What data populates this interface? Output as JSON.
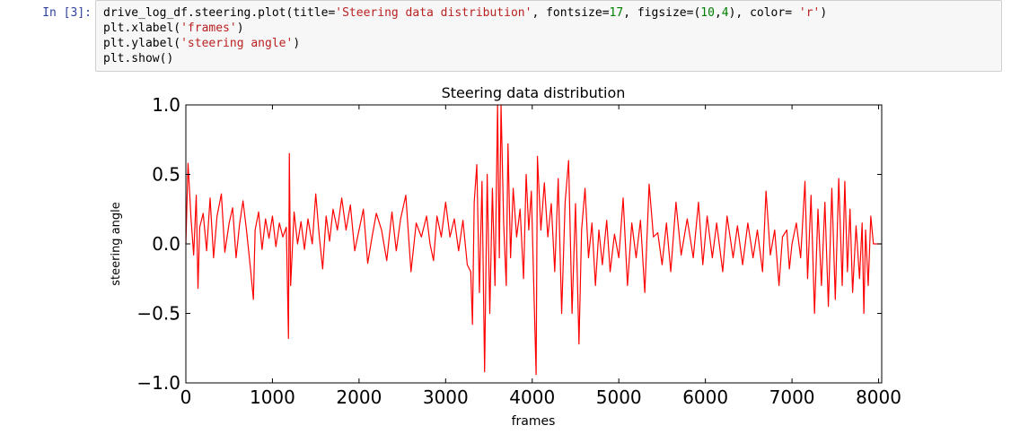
{
  "cell": {
    "prompt": "In [3]:",
    "code_lines": [
      [
        {
          "t": "drive_log_df.steering.plot(title=",
          "c": ""
        },
        {
          "t": "'Steering data distribution'",
          "c": "str"
        },
        {
          "t": ", fontsize=",
          "c": ""
        },
        {
          "t": "17",
          "c": "num"
        },
        {
          "t": ", figsize=(",
          "c": ""
        },
        {
          "t": "10",
          "c": "num"
        },
        {
          "t": ",",
          "c": ""
        },
        {
          "t": "4",
          "c": "num"
        },
        {
          "t": "), color= ",
          "c": ""
        },
        {
          "t": "'r'",
          "c": "str"
        },
        {
          "t": ")",
          "c": ""
        }
      ],
      [
        {
          "t": "plt.xlabel(",
          "c": ""
        },
        {
          "t": "'frames'",
          "c": "str"
        },
        {
          "t": ")",
          "c": ""
        }
      ],
      [
        {
          "t": "plt.ylabel(",
          "c": ""
        },
        {
          "t": "'steering angle'",
          "c": "str"
        },
        {
          "t": ")",
          "c": ""
        }
      ],
      [
        {
          "t": "plt.show()",
          "c": ""
        }
      ]
    ]
  },
  "colors": {
    "series": "#ff0000",
    "string": "#ba2121",
    "number": "#008000",
    "prompt": "#303f9f",
    "cell_background": "#f7f7f7"
  },
  "chart_data": {
    "type": "line",
    "title": "Steering data distribution",
    "xlabel": "frames",
    "ylabel": "steering angle",
    "xlim": [
      0,
      8036
    ],
    "ylim": [
      -1.0,
      1.0
    ],
    "xticks": [
      0,
      1000,
      2000,
      3000,
      4000,
      5000,
      6000,
      7000,
      8000
    ],
    "xtick_labels": [
      "0",
      "1000",
      "2000",
      "3000",
      "4000",
      "5000",
      "6000",
      "7000",
      "8000"
    ],
    "yticks": [
      1.0,
      0.5,
      0.0,
      -0.5,
      -1.0
    ],
    "ytick_labels": [
      "1.0",
      "0.5",
      "0.0",
      "−0.5",
      "−1.0"
    ],
    "grid": false,
    "legend": false,
    "series": [
      {
        "color": "r",
        "points": [
          [
            0,
            0.0
          ],
          [
            25,
            0.58
          ],
          [
            60,
            0.18
          ],
          [
            90,
            -0.08
          ],
          [
            120,
            0.35
          ],
          [
            140,
            -0.32
          ],
          [
            160,
            0.12
          ],
          [
            200,
            0.22
          ],
          [
            240,
            -0.05
          ],
          [
            280,
            0.33
          ],
          [
            320,
            -0.1
          ],
          [
            360,
            0.2
          ],
          [
            410,
            0.36
          ],
          [
            450,
            -0.06
          ],
          [
            500,
            0.15
          ],
          [
            540,
            0.26
          ],
          [
            580,
            -0.1
          ],
          [
            620,
            0.14
          ],
          [
            660,
            0.31
          ],
          [
            700,
            0.1
          ],
          [
            750,
            -0.2
          ],
          [
            780,
            -0.4
          ],
          [
            800,
            0.1
          ],
          [
            840,
            0.23
          ],
          [
            880,
            -0.04
          ],
          [
            920,
            0.18
          ],
          [
            960,
            0.04
          ],
          [
            1000,
            0.2
          ],
          [
            1040,
            -0.02
          ],
          [
            1080,
            0.15
          ],
          [
            1120,
            0.05
          ],
          [
            1160,
            0.12
          ],
          [
            1185,
            -0.68
          ],
          [
            1195,
            0.65
          ],
          [
            1210,
            -0.3
          ],
          [
            1250,
            0.23
          ],
          [
            1290,
            0.0
          ],
          [
            1330,
            0.16
          ],
          [
            1370,
            -0.04
          ],
          [
            1410,
            0.18
          ],
          [
            1460,
            0.0
          ],
          [
            1500,
            0.36
          ],
          [
            1540,
            0.06
          ],
          [
            1580,
            -0.18
          ],
          [
            1620,
            0.2
          ],
          [
            1660,
            0.02
          ],
          [
            1700,
            0.25
          ],
          [
            1750,
            0.1
          ],
          [
            1800,
            0.33
          ],
          [
            1850,
            0.1
          ],
          [
            1900,
            0.28
          ],
          [
            1950,
            -0.05
          ],
          [
            2000,
            0.1
          ],
          [
            2050,
            0.25
          ],
          [
            2100,
            -0.14
          ],
          [
            2150,
            0.05
          ],
          [
            2200,
            0.22
          ],
          [
            2260,
            0.1
          ],
          [
            2320,
            -0.12
          ],
          [
            2380,
            0.23
          ],
          [
            2430,
            -0.05
          ],
          [
            2480,
            0.18
          ],
          [
            2540,
            0.35
          ],
          [
            2600,
            -0.2
          ],
          [
            2660,
            0.15
          ],
          [
            2720,
            0.05
          ],
          [
            2780,
            0.2
          ],
          [
            2820,
            0.0
          ],
          [
            2860,
            -0.12
          ],
          [
            2900,
            0.2
          ],
          [
            2950,
            0.05
          ],
          [
            3000,
            0.3
          ],
          [
            3050,
            0.05
          ],
          [
            3100,
            0.18
          ],
          [
            3150,
            -0.05
          ],
          [
            3200,
            0.17
          ],
          [
            3250,
            -0.15
          ],
          [
            3290,
            -0.2
          ],
          [
            3310,
            -0.58
          ],
          [
            3330,
            0.3
          ],
          [
            3360,
            0.57
          ],
          [
            3390,
            -0.35
          ],
          [
            3420,
            0.45
          ],
          [
            3450,
            -0.92
          ],
          [
            3480,
            0.5
          ],
          [
            3510,
            -0.5
          ],
          [
            3540,
            0.4
          ],
          [
            3570,
            -0.3
          ],
          [
            3600,
            1.0
          ],
          [
            3620,
            -0.1
          ],
          [
            3640,
            1.0
          ],
          [
            3670,
            0.15
          ],
          [
            3700,
            -0.3
          ],
          [
            3720,
            0.72
          ],
          [
            3750,
            -0.1
          ],
          [
            3780,
            0.4
          ],
          [
            3820,
            0.05
          ],
          [
            3860,
            0.25
          ],
          [
            3900,
            -0.25
          ],
          [
            3930,
            0.5
          ],
          [
            3960,
            0.1
          ],
          [
            3990,
            0.38
          ],
          [
            4020,
            -0.35
          ],
          [
            4045,
            -0.94
          ],
          [
            4060,
            0.63
          ],
          [
            4100,
            0.1
          ],
          [
            4140,
            0.44
          ],
          [
            4180,
            0.05
          ],
          [
            4220,
            0.29
          ],
          [
            4260,
            -0.2
          ],
          [
            4300,
            0.47
          ],
          [
            4340,
            -0.5
          ],
          [
            4380,
            0.3
          ],
          [
            4420,
            0.6
          ],
          [
            4460,
            -0.5
          ],
          [
            4500,
            0.29
          ],
          [
            4540,
            -0.72
          ],
          [
            4570,
            0.1
          ],
          [
            4610,
            0.4
          ],
          [
            4650,
            -0.1
          ],
          [
            4690,
            0.15
          ],
          [
            4730,
            -0.3
          ],
          [
            4770,
            0.1
          ],
          [
            4810,
            -0.15
          ],
          [
            4860,
            0.17
          ],
          [
            4900,
            -0.2
          ],
          [
            4950,
            0.07
          ],
          [
            5000,
            -0.1
          ],
          [
            5050,
            0.33
          ],
          [
            5100,
            -0.3
          ],
          [
            5150,
            0.15
          ],
          [
            5200,
            -0.1
          ],
          [
            5250,
            0.17
          ],
          [
            5300,
            -0.35
          ],
          [
            5350,
            0.43
          ],
          [
            5400,
            0.05
          ],
          [
            5450,
            0.08
          ],
          [
            5500,
            -0.15
          ],
          [
            5550,
            0.15
          ],
          [
            5600,
            -0.2
          ],
          [
            5660,
            0.3
          ],
          [
            5720,
            -0.08
          ],
          [
            5790,
            0.18
          ],
          [
            5860,
            -0.1
          ],
          [
            5920,
            0.3
          ],
          [
            5970,
            -0.15
          ],
          [
            6020,
            0.2
          ],
          [
            6080,
            -0.1
          ],
          [
            6130,
            0.15
          ],
          [
            6200,
            -0.2
          ],
          [
            6250,
            0.2
          ],
          [
            6320,
            -0.1
          ],
          [
            6370,
            0.13
          ],
          [
            6430,
            -0.15
          ],
          [
            6490,
            0.15
          ],
          [
            6550,
            -0.1
          ],
          [
            6600,
            0.1
          ],
          [
            6660,
            -0.2
          ],
          [
            6700,
            0.38
          ],
          [
            6750,
            -0.08
          ],
          [
            6800,
            0.1
          ],
          [
            6850,
            -0.3
          ],
          [
            6890,
            0.05
          ],
          [
            6940,
            0.1
          ],
          [
            6970,
            -0.18
          ],
          [
            7000,
            0.0
          ],
          [
            7050,
            0.15
          ],
          [
            7100,
            -0.1
          ],
          [
            7150,
            0.45
          ],
          [
            7180,
            -0.25
          ],
          [
            7220,
            0.35
          ],
          [
            7260,
            -0.5
          ],
          [
            7300,
            0.25
          ],
          [
            7340,
            -0.3
          ],
          [
            7380,
            0.3
          ],
          [
            7420,
            -0.45
          ],
          [
            7460,
            0.4
          ],
          [
            7500,
            -0.4
          ],
          [
            7540,
            0.47
          ],
          [
            7580,
            -0.3
          ],
          [
            7610,
            0.45
          ],
          [
            7640,
            -0.2
          ],
          [
            7670,
            0.25
          ],
          [
            7700,
            -0.35
          ],
          [
            7740,
            0.13
          ],
          [
            7780,
            -0.25
          ],
          [
            7810,
            0.15
          ],
          [
            7830,
            -0.5
          ],
          [
            7850,
            0.1
          ],
          [
            7880,
            -0.3
          ],
          [
            7910,
            0.2
          ],
          [
            7940,
            0.0
          ],
          [
            8036,
            0.0
          ]
        ]
      }
    ]
  }
}
